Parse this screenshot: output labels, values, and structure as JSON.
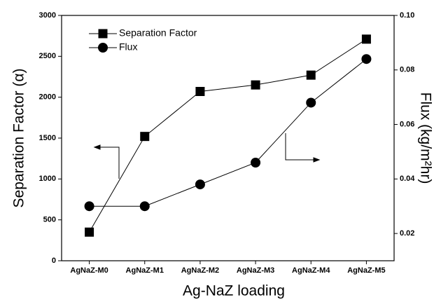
{
  "chart_data": {
    "type": "line",
    "x_label": "Ag-NaZ loading",
    "y_label": "Separation Factor (α)",
    "y2_label": "Flux (kg/m²hr)",
    "categories": [
      "AgNaZ-M0",
      "AgNaZ-M1",
      "AgNaZ-M2",
      "AgNaZ-M3",
      "AgNaZ-M4",
      "AgNaZ-M5"
    ],
    "series": [
      {
        "name": "Separation Factor",
        "color": "#000000",
        "marker": "square",
        "values": [
          350,
          1520,
          2070,
          2150,
          2270,
          2710
        ]
      },
      {
        "name": "Flux",
        "color": "#000000",
        "marker": "circle",
        "axis": "y2",
        "values": [
          0.03,
          0.03,
          0.038,
          0.046,
          0.068,
          0.084
        ]
      }
    ],
    "ylim": [
      0,
      3000
    ],
    "yticks": [
      0,
      500,
      1000,
      1500,
      2000,
      2500,
      3000
    ],
    "y2lim": [
      0.01,
      0.1
    ],
    "y2ticks": [
      0.02,
      0.04,
      0.06,
      0.08,
      {
        "value": 0.1,
        "label": "0.10"
      }
    ],
    "legend": "upper left",
    "grid": false
  }
}
